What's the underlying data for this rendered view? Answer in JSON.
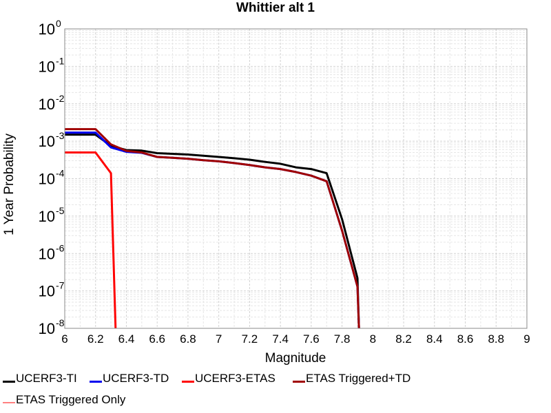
{
  "chart_data": {
    "type": "line",
    "title": "Whittier alt 1",
    "xlabel": "Magnitude",
    "ylabel": "1 Year Probability",
    "xlim": [
      6,
      9
    ],
    "ylim": [
      1e-08,
      1
    ],
    "y_scale": "log",
    "grid": true,
    "x_ticks": [
      "6",
      "6.2",
      "6.4",
      "6.6",
      "6.8",
      "7",
      "7.2",
      "7.4",
      "7.6",
      "7.8",
      "8",
      "8.2",
      "8.4",
      "8.6",
      "8.8",
      "9"
    ],
    "y_tick_exponents": [
      "0",
      "-1",
      "-2",
      "-3",
      "-4",
      "-5",
      "-6",
      "-7",
      "-8"
    ],
    "y_tick_base": "10",
    "legend_position": "bottom",
    "series": [
      {
        "name": "UCERF3-TI",
        "color": "#000000",
        "x": [
          6.0,
          6.2,
          6.3,
          6.4,
          6.5,
          6.6,
          6.7,
          6.8,
          6.9,
          7.0,
          7.1,
          7.2,
          7.3,
          7.4,
          7.5,
          7.6,
          7.7,
          7.8,
          7.9,
          7.91
        ],
        "y": [
          0.0015,
          0.0015,
          0.00075,
          0.00058,
          0.00056,
          0.00048,
          0.00046,
          0.00044,
          0.00041,
          0.00038,
          0.00035,
          0.00032,
          0.00028,
          0.00025,
          0.0002,
          0.00018,
          0.00014,
          8.3e-06,
          2.2e-07,
          1e-08
        ]
      },
      {
        "name": "UCERF3-TD",
        "color": "#0000ee",
        "x": [
          6.0,
          6.2,
          6.3,
          6.4,
          6.5,
          6.6,
          6.7,
          6.8,
          6.9,
          7.0,
          7.1,
          7.2,
          7.3,
          7.4,
          7.5,
          7.6,
          7.7,
          7.8,
          7.9,
          7.91
        ],
        "y": [
          0.0017,
          0.0017,
          0.00068,
          0.00052,
          0.00049,
          0.00038,
          0.00036,
          0.00034,
          0.00031,
          0.00029,
          0.00026,
          0.00023,
          0.0002,
          0.00018,
          0.00015,
          0.00012,
          8.5e-05,
          4.1e-06,
          1.3e-07,
          1e-08
        ]
      },
      {
        "name": "UCERF3-ETAS",
        "color": "#ff0000",
        "x": [
          6.0,
          6.2,
          6.3,
          6.33
        ],
        "y": [
          0.0005,
          0.0005,
          0.00014,
          1e-08
        ]
      },
      {
        "name": "ETAS Triggered+TD",
        "color": "#a00000",
        "x": [
          6.0,
          6.2,
          6.3,
          6.4,
          6.5,
          6.6,
          6.7,
          6.8,
          6.9,
          7.0,
          7.1,
          7.2,
          7.3,
          7.4,
          7.5,
          7.6,
          7.7,
          7.8,
          7.9,
          7.91
        ],
        "y": [
          0.0021,
          0.0021,
          0.00082,
          0.00055,
          0.0005,
          0.00038,
          0.00036,
          0.00034,
          0.00031,
          0.00029,
          0.00026,
          0.00023,
          0.0002,
          0.00018,
          0.00015,
          0.00012,
          8.5e-05,
          4.1e-06,
          1.3e-07,
          1e-08
        ]
      },
      {
        "name": "ETAS Triggered Only",
        "color": "#ff8080",
        "x": [],
        "y": []
      }
    ]
  }
}
